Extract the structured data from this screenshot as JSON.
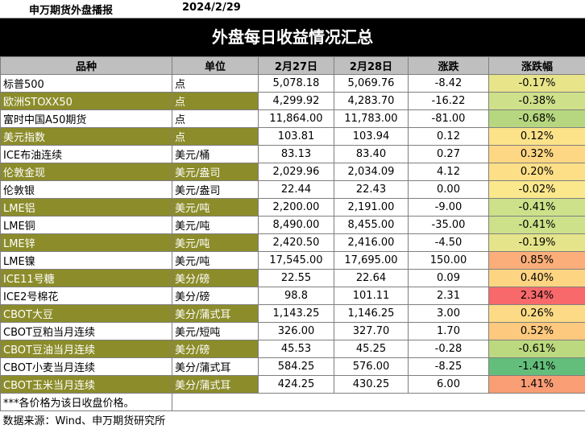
{
  "header": {
    "org": "申万期货外盘播报",
    "date": "2024/2/29"
  },
  "title": "外盘每日收益情况汇总",
  "columns": [
    "品种",
    "单位",
    "2月27日",
    "2月28日",
    "涨跌",
    "涨跌幅"
  ],
  "rows": [
    {
      "name": "标普500",
      "unit": "点",
      "d27": "5,078.18",
      "d28": "5,069.76",
      "chg": "-8.42",
      "pct": "-0.17%",
      "pct_color": "#e7e48a"
    },
    {
      "name": "欧洲STOXX50",
      "unit": "点",
      "d27": "4,299.92",
      "d28": "4,283.70",
      "chg": "-16.22",
      "pct": "-0.38%",
      "pct_color": "#cfe08a"
    },
    {
      "name": "富时中国A50期货",
      "unit": "点",
      "d27": "11,864.00",
      "d28": "11,783.00",
      "chg": "-81.00",
      "pct": "-0.68%",
      "pct_color": "#b6d77f"
    },
    {
      "name": "美元指数",
      "unit": "点",
      "d27": "103.81",
      "d28": "103.94",
      "chg": "0.12",
      "pct": "0.12%",
      "pct_color": "#fce38a"
    },
    {
      "name": "ICE布油连续",
      "unit": "美元/桶",
      "d27": "83.13",
      "d28": "83.40",
      "chg": "0.27",
      "pct": "0.32%",
      "pct_color": "#fdd784"
    },
    {
      "name": "伦敦金现",
      "unit": "美元/盎司",
      "d27": "2,029.96",
      "d28": "2,034.09",
      "chg": "4.12",
      "pct": "0.20%",
      "pct_color": "#fddf87"
    },
    {
      "name": "伦敦银",
      "unit": "美元/盎司",
      "d27": "22.44",
      "d28": "22.43",
      "chg": "0.00",
      "pct": "-0.02%",
      "pct_color": "#fbe88c"
    },
    {
      "name": "LME铝",
      "unit": "美元/吨",
      "d27": "2,200.00",
      "d28": "2,191.00",
      "chg": "-9.00",
      "pct": "-0.41%",
      "pct_color": "#cde08a"
    },
    {
      "name": "LME铜",
      "unit": "美元/吨",
      "d27": "8,490.00",
      "d28": "8,455.00",
      "chg": "-35.00",
      "pct": "-0.41%",
      "pct_color": "#cde08a"
    },
    {
      "name": "LME锌",
      "unit": "美元/吨",
      "d27": "2,420.50",
      "d28": "2,416.00",
      "chg": "-4.50",
      "pct": "-0.19%",
      "pct_color": "#e5e48a"
    },
    {
      "name": "LME镍",
      "unit": "美元/吨",
      "d27": "17,545.00",
      "d28": "17,695.00",
      "chg": "150.00",
      "pct": "0.85%",
      "pct_color": "#fbae79"
    },
    {
      "name": "ICE11号糖",
      "unit": "美分/磅",
      "d27": "22.55",
      "d28": "22.64",
      "chg": "0.09",
      "pct": "0.40%",
      "pct_color": "#fdd582"
    },
    {
      "name": "ICE2号棉花",
      "unit": "美分/磅",
      "d27": "98.8",
      "d28": "101.11",
      "chg": "2.31",
      "pct": "2.34%",
      "pct_color": "#f8696b"
    },
    {
      "name": "CBOT大豆",
      "unit": "美分/蒲式耳",
      "d27": "1,143.25",
      "d28": "1,146.25",
      "chg": "3.00",
      "pct": "0.26%",
      "pct_color": "#fddb86"
    },
    {
      "name": "CBOT豆粕当月连续",
      "unit": "美元/短吨",
      "d27": "326.00",
      "d28": "327.70",
      "chg": "1.70",
      "pct": "0.52%",
      "pct_color": "#fcc97f"
    },
    {
      "name": "CBOT豆油当月连续",
      "unit": "美分/磅",
      "d27": "45.53",
      "d28": "45.25",
      "chg": "-0.28",
      "pct": "-0.61%",
      "pct_color": "#bcd980"
    },
    {
      "name": "CBOT小麦当月连续",
      "unit": "美分/蒲式耳",
      "d27": "584.25",
      "d28": "576.00",
      "chg": "-8.25",
      "pct": "-1.41%",
      "pct_color": "#63be7b"
    },
    {
      "name": "CBOT玉米当月连续",
      "unit": "美分/蒲式耳",
      "d27": "424.25",
      "d28": "430.25",
      "chg": "6.00",
      "pct": "1.41%",
      "pct_color": "#f99d75"
    }
  ],
  "note": "***各价格为该日收盘价格。",
  "source": "数据来源：Wind、申万期货研究所"
}
